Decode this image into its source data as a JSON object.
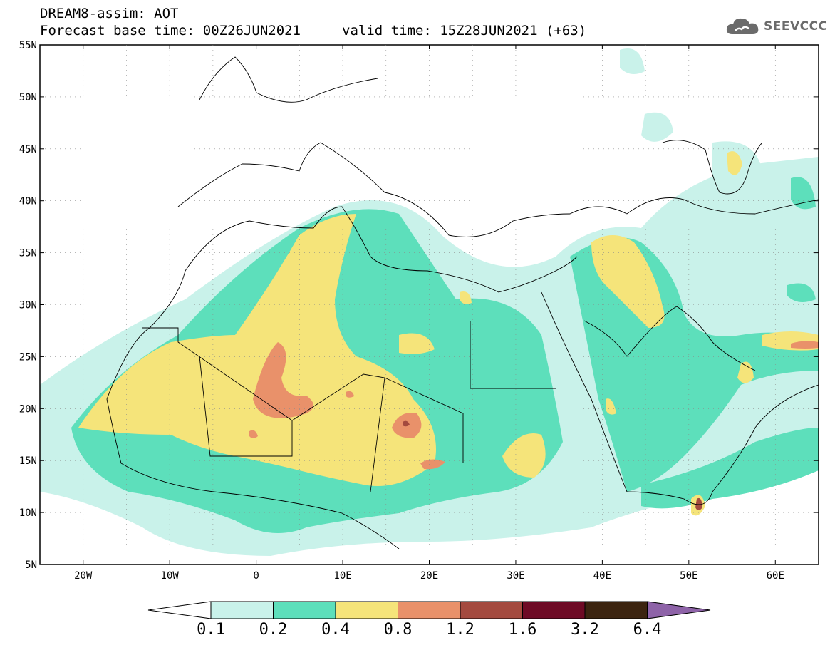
{
  "header": {
    "title": "DREAM8-assim: AOT",
    "base_time": "Forecast base time: 00Z26JUN2021",
    "valid_time": "valid time: 15Z28JUN2021 (+63)"
  },
  "logo": {
    "text": "SEEVCCC",
    "icon": "cloud-icon"
  },
  "map": {
    "lon_range": [
      -25,
      65
    ],
    "lat_range": [
      5,
      55
    ],
    "lat_ticks": [
      "5N",
      "10N",
      "15N",
      "20N",
      "25N",
      "30N",
      "35N",
      "40N",
      "45N",
      "50N",
      "55N"
    ],
    "lon_ticks": [
      "20W",
      "10W",
      "0",
      "10E",
      "20E",
      "30E",
      "40E",
      "50E",
      "60E"
    ],
    "grid": "dotted"
  },
  "colorbar": {
    "labels": [
      "0.1",
      "0.2",
      "0.4",
      "0.8",
      "1.2",
      "1.6",
      "3.2",
      "6.4"
    ],
    "colors": [
      "#ffffff",
      "#c9f2ea",
      "#5ddfbb",
      "#f5e47a",
      "#e9916a",
      "#a44a3f",
      "#6e0a25",
      "#3c2410",
      "#8e63a8"
    ]
  }
}
